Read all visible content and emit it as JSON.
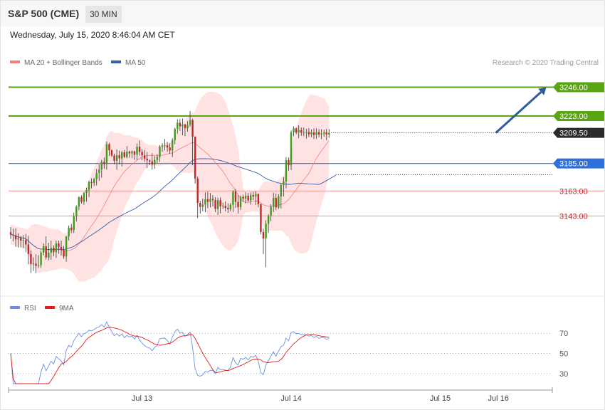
{
  "header": {
    "instrument": "S&P 500 (CME)",
    "timeframe": "30 MIN",
    "timestamp": "Wednesday, July 15, 2020 8:46:04 AM CET",
    "credit": "Research © 2020 Trading Central"
  },
  "colors": {
    "bull": "#3f9b1b",
    "bear": "#c1272d",
    "ma20": "#f08080",
    "bands_fill": "#ffe3e3",
    "ma50": "#3a5da6",
    "green_level": "#5aa514",
    "blue_level": "#2f6fdb",
    "red_level": "#f59a9a",
    "arrow": "#2f5d9b",
    "rsi": "#6a8fdc",
    "rsi_ma": "#e21b1b"
  },
  "chart_data": [
    {
      "type": "candlestick",
      "legend": [
        {
          "label": "MA 20 + Bollinger Bands",
          "color": "#f08080"
        },
        {
          "label": "MA 50",
          "color": "#3a5da6"
        }
      ],
      "ylim": [
        3088,
        3256
      ],
      "x_tick_labels": [
        {
          "label": "Jul 13",
          "bar": 52
        },
        {
          "label": "Jul 14",
          "bar": 111
        },
        {
          "label": "Jul 15",
          "bar": 170
        },
        {
          "label": "Jul 16",
          "bar": 193
        }
      ],
      "levels": [
        {
          "value": 3246.0,
          "label": "3246.00",
          "style": "green"
        },
        {
          "value": 3223.0,
          "label": "3223.00",
          "style": "green"
        },
        {
          "value": 3209.5,
          "label": "3209.50",
          "style": "current"
        },
        {
          "value": 3185.0,
          "label": "3185.00",
          "style": "blue"
        },
        {
          "value": 3163.0,
          "label": "3163.00",
          "style": "red"
        },
        {
          "value": 3143.0,
          "label": "3143.00",
          "style": "red"
        }
      ],
      "projection": {
        "from": [
          192,
          3209.5
        ],
        "to": [
          212,
          3246
        ]
      },
      "candles": [
        [
          3130.0,
          3134.1,
          3124.7,
          3128.1
        ],
        [
          3128.1,
          3132.8,
          3122.7,
          3127.7
        ],
        [
          3127.7,
          3133.2,
          3118.3,
          3124.3
        ],
        [
          3124.3,
          3129.3,
          3117.8,
          3125.2
        ],
        [
          3125.2,
          3127.0,
          3117.9,
          3123.3
        ],
        [
          3123.3,
          3127.7,
          3117.3,
          3123.7
        ],
        [
          3123.7,
          3128.7,
          3114.0,
          3120.2
        ],
        [
          3120.2,
          3127.1,
          3104.3,
          3112.6
        ],
        [
          3112.6,
          3115.5,
          3097.3,
          3104.5
        ],
        [
          3104.5,
          3109.9,
          3099.0,
          3104.9
        ],
        [
          3104.9,
          3112.4,
          3097.2,
          3103.1
        ],
        [
          3103.1,
          3111.6,
          3101.3,
          3103.7
        ],
        [
          3103.7,
          3115.4,
          3101.5,
          3113.7
        ],
        [
          3113.7,
          3121.1,
          3111.5,
          3118.8
        ],
        [
          3118.8,
          3126.8,
          3108.1,
          3109.8
        ],
        [
          3109.8,
          3121.5,
          3107.5,
          3113.6
        ],
        [
          3113.6,
          3123.3,
          3108.0,
          3117.6
        ],
        [
          3117.6,
          3119.6,
          3110.6,
          3114.0
        ],
        [
          3114.0,
          3123.4,
          3109.4,
          3121.1
        ],
        [
          3121.1,
          3123.3,
          3112.8,
          3118.2
        ],
        [
          3118.2,
          3123.3,
          3111.3,
          3115.7
        ],
        [
          3115.7,
          3119.1,
          3108.8,
          3110.6
        ],
        [
          3110.6,
          3127.0,
          3106.4,
          3126.6
        ],
        [
          3126.6,
          3135.4,
          3123.4,
          3133.7
        ],
        [
          3133.7,
          3136.7,
          3129.3,
          3131.7
        ],
        [
          3131.7,
          3145.7,
          3129.4,
          3142.6
        ],
        [
          3142.6,
          3151.5,
          3138.6,
          3150.4
        ],
        [
          3150.4,
          3158.8,
          3147.7,
          3158.0
        ],
        [
          3158.0,
          3159.6,
          3152.9,
          3154.4
        ],
        [
          3154.4,
          3162.2,
          3152.1,
          3161.5
        ],
        [
          3161.5,
          3165.7,
          3154.5,
          3163.8
        ],
        [
          3163.8,
          3171.2,
          3158.1,
          3170.1
        ],
        [
          3170.1,
          3173.1,
          3165.1,
          3169.4
        ],
        [
          3169.4,
          3173.6,
          3167.0,
          3172.5
        ],
        [
          3172.5,
          3180.6,
          3167.4,
          3177.4
        ],
        [
          3177.4,
          3184.3,
          3171.1,
          3180.2
        ],
        [
          3180.2,
          3188.0,
          3173.6,
          3186.4
        ],
        [
          3186.4,
          3189.8,
          3180.7,
          3184.4
        ],
        [
          3184.4,
          3202.6,
          3180.1,
          3200.4
        ],
        [
          3200.4,
          3201.6,
          3191.0,
          3195.6
        ],
        [
          3195.6,
          3196.2,
          3190.3,
          3191.3
        ],
        [
          3191.3,
          3192.9,
          3184.4,
          3187.1
        ],
        [
          3187.1,
          3196.3,
          3180.0,
          3191.6
        ],
        [
          3191.6,
          3195.3,
          3184.2,
          3189.1
        ],
        [
          3189.1,
          3195.1,
          3182.6,
          3193.9
        ],
        [
          3193.9,
          3195.8,
          3189.3,
          3190.2
        ],
        [
          3190.2,
          3199.0,
          3189.1,
          3194.5
        ],
        [
          3194.5,
          3195.4,
          3189.6,
          3193.1
        ],
        [
          3193.1,
          3195.5,
          3189.2,
          3194.7
        ],
        [
          3194.7,
          3195.2,
          3187.9,
          3192.1
        ],
        [
          3192.1,
          3200.9,
          3187.7,
          3198.4
        ],
        [
          3198.4,
          3203.5,
          3191.2,
          3194.3
        ],
        [
          3194.3,
          3196.5,
          3187.5,
          3191.5
        ],
        [
          3191.5,
          3195.8,
          3186.3,
          3188.9
        ],
        [
          3188.9,
          3194.2,
          3181.3,
          3187.4
        ],
        [
          3187.4,
          3188.4,
          3183.7,
          3186.6
        ],
        [
          3186.6,
          3193.2,
          3180.1,
          3184.2
        ],
        [
          3184.2,
          3190.9,
          3180.9,
          3187.8
        ],
        [
          3187.8,
          3192.5,
          3185.3,
          3190.1
        ],
        [
          3190.1,
          3199.7,
          3186.4,
          3198.4
        ],
        [
          3198.4,
          3201.2,
          3194.2,
          3199.4
        ],
        [
          3199.4,
          3204.6,
          3195.5,
          3199.5
        ],
        [
          3199.5,
          3202.3,
          3194.4,
          3197.8
        ],
        [
          3197.8,
          3201.2,
          3192.7,
          3195.4
        ],
        [
          3195.4,
          3205.2,
          3190.1,
          3203.7
        ],
        [
          3203.7,
          3213.7,
          3200.3,
          3212.6
        ],
        [
          3212.6,
          3220.4,
          3208.9,
          3217.6
        ],
        [
          3217.6,
          3220.5,
          3211.2,
          3214.7
        ],
        [
          3214.7,
          3221.0,
          3207.6,
          3216.2
        ],
        [
          3216.2,
          3216.8,
          3206.9,
          3213.2
        ],
        [
          3213.2,
          3218.9,
          3210.5,
          3215.9
        ],
        [
          3215.9,
          3227.0,
          3214.5,
          3219.7
        ],
        [
          3219.7,
          3220.9,
          3183.5,
          3206.5
        ],
        [
          3206.5,
          3206.6,
          3169.0,
          3172.9
        ],
        [
          3172.9,
          3174.5,
          3141.3,
          3153.5
        ],
        [
          3153.5,
          3155.2,
          3144.9,
          3150.3
        ],
        [
          3150.3,
          3156.9,
          3146.8,
          3152.1
        ],
        [
          3152.1,
          3161.9,
          3146.0,
          3156.3
        ],
        [
          3156.3,
          3162.6,
          3149.3,
          3154.3
        ],
        [
          3154.3,
          3161.3,
          3149.9,
          3156.7
        ],
        [
          3156.7,
          3159.6,
          3150.6,
          3155.7
        ],
        [
          3155.7,
          3158.0,
          3146.2,
          3148.7
        ],
        [
          3148.7,
          3157.6,
          3143.9,
          3155.6
        ],
        [
          3155.6,
          3157.9,
          3145.1,
          3150.8
        ],
        [
          3150.8,
          3153.6,
          3148.5,
          3151.2
        ],
        [
          3151.2,
          3154.6,
          3146.7,
          3149.5
        ],
        [
          3149.5,
          3153.2,
          3145.5,
          3148.4
        ],
        [
          3148.4,
          3153.3,
          3146.6,
          3152.0
        ],
        [
          3152.0,
          3163.5,
          3146.2,
          3162.5
        ],
        [
          3162.5,
          3164.6,
          3149.5,
          3154.3
        ],
        [
          3154.3,
          3159.6,
          3144.9,
          3150.0
        ],
        [
          3150.0,
          3159.5,
          3147.8,
          3158.3
        ],
        [
          3158.3,
          3160.1,
          3154.2,
          3156.9
        ],
        [
          3156.9,
          3162.2,
          3153.1,
          3159.2
        ],
        [
          3159.2,
          3161.5,
          3154.4,
          3155.4
        ],
        [
          3155.4,
          3161.9,
          3152.0,
          3159.7
        ],
        [
          3159.7,
          3162.4,
          3155.7,
          3158.5
        ],
        [
          3158.5,
          3162.8,
          3151.7,
          3160.7
        ],
        [
          3160.7,
          3160.9,
          3149.9,
          3152.5
        ],
        [
          3152.5,
          3152.8,
          3128.3,
          3130.2
        ],
        [
          3130.2,
          3132.9,
          3112.5,
          3125.0
        ],
        [
          3125.0,
          3139.6,
          3102.0,
          3136.7
        ],
        [
          3136.7,
          3144.4,
          3129.4,
          3143.3
        ],
        [
          3143.3,
          3152.4,
          3138.8,
          3150.3
        ],
        [
          3150.3,
          3161.6,
          3146.1,
          3157.5
        ],
        [
          3157.5,
          3160.9,
          3147.6,
          3149.9
        ],
        [
          3149.9,
          3160.5,
          3148.6,
          3158.6
        ],
        [
          3158.6,
          3169.2,
          3149.0,
          3167.7
        ],
        [
          3167.7,
          3174.2,
          3158.7,
          3170.6
        ],
        [
          3170.6,
          3190.1,
          3165.1,
          3187.6
        ],
        [
          3187.6,
          3189.8,
          3179.3,
          3183.6
        ],
        [
          3183.6,
          3211.4,
          3179.8,
          3210.0
        ],
        [
          3210.0,
          3214.7,
          3206.8,
          3213.1
        ],
        [
          3213.1,
          3213.8,
          3208.4,
          3209.8
        ],
        [
          3209.8,
          3215.6,
          3205.2,
          3211.7
        ],
        [
          3211.7,
          3213.8,
          3207.1,
          3209.6
        ],
        [
          3209.6,
          3213.8,
          3206.9,
          3209.9
        ],
        [
          3209.9,
          3212.8,
          3204.9,
          3210.2
        ],
        [
          3210.2,
          3213.2,
          3206.0,
          3208.4
        ],
        [
          3208.4,
          3212.2,
          3206.0,
          3209.9
        ],
        [
          3209.9,
          3213.1,
          3204.5,
          3207.8
        ],
        [
          3207.8,
          3213.1,
          3204.6,
          3210.1
        ],
        [
          3210.1,
          3212.4,
          3206.0,
          3208.2
        ],
        [
          3208.2,
          3212.4,
          3204.4,
          3208.9
        ],
        [
          3208.9,
          3212.0,
          3206.4,
          3210.0
        ],
        [
          3210.0,
          3212.6,
          3203.6,
          3208.2
        ],
        [
          3208.2,
          3212.4,
          3205.6,
          3209.5
        ]
      ]
    },
    {
      "type": "line",
      "legend": [
        {
          "label": "RSI",
          "color": "#6a8fdc"
        },
        {
          "label": "9MA",
          "color": "#e21b1b"
        }
      ],
      "ylim": [
        20,
        85
      ],
      "ticks": [
        70,
        50,
        30
      ]
    }
  ]
}
